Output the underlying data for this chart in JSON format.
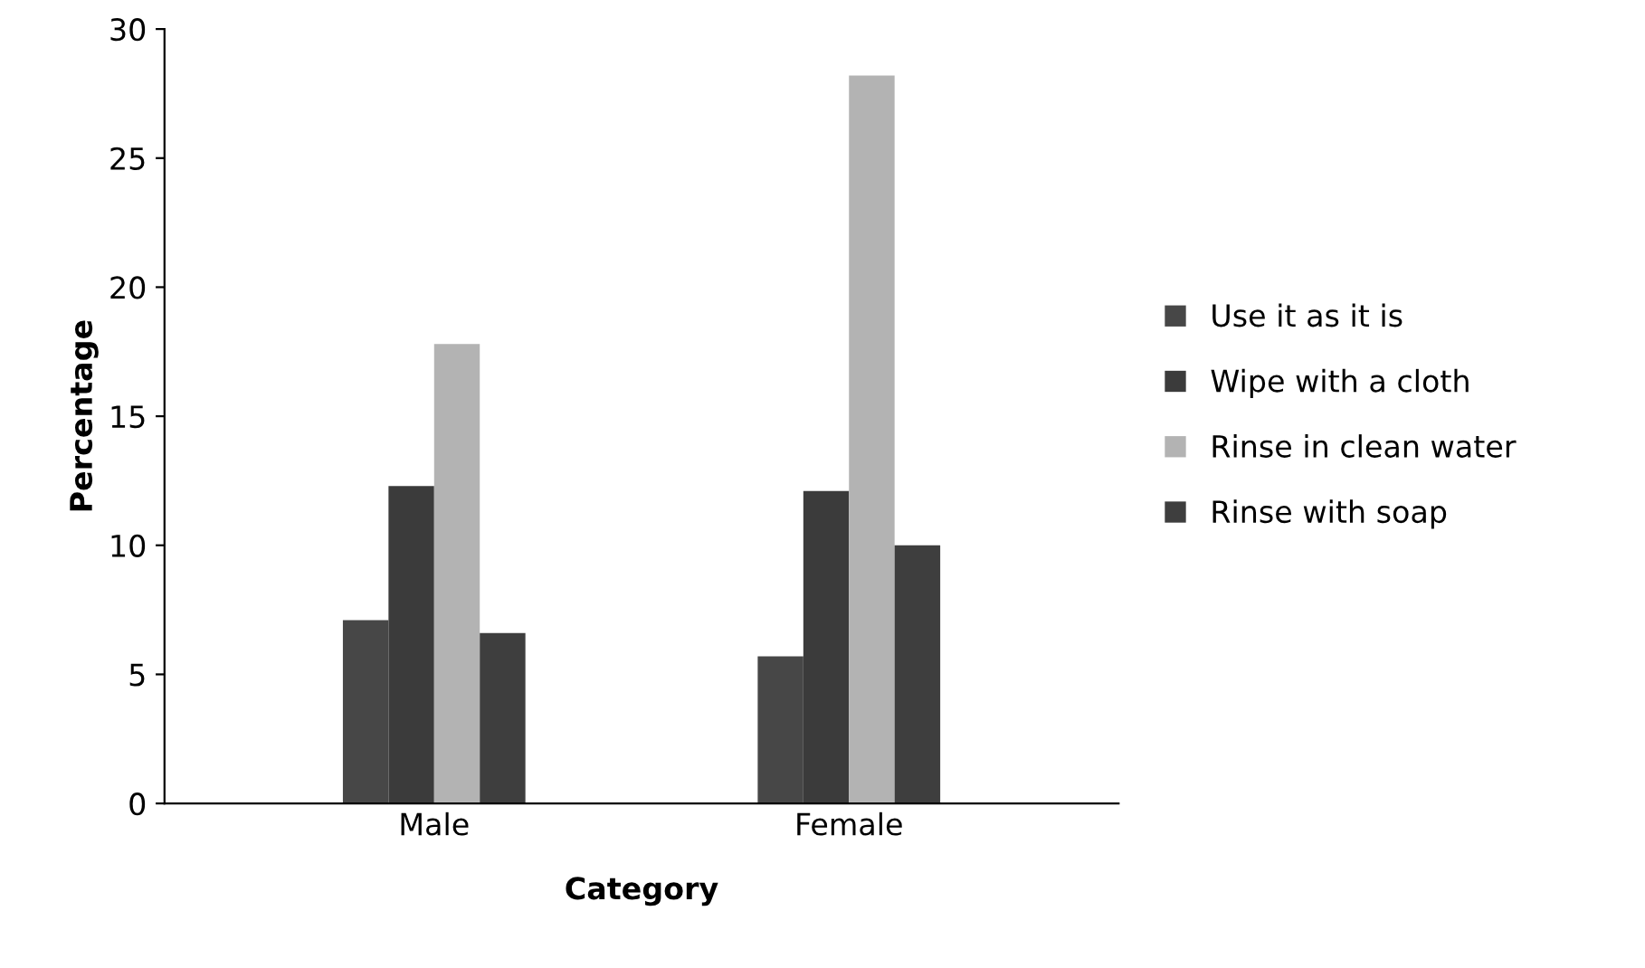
{
  "chart_data": {
    "type": "bar",
    "xlabel": "Category",
    "ylabel": "Percentage",
    "categories": [
      "Male",
      "Female"
    ],
    "series": [
      {
        "name": "Use it as it is",
        "color": "#474747",
        "values": [
          7.1,
          5.7
        ]
      },
      {
        "name": "Wipe with a cloth",
        "color": "#3b3b3b",
        "values": [
          12.3,
          12.1
        ]
      },
      {
        "name": "Rinse in clean water",
        "color": "#b3b3b3",
        "values": [
          17.8,
          28.2
        ]
      },
      {
        "name": "Rinse with soap",
        "color": "#3e3e3e",
        "values": [
          6.6,
          10.0
        ]
      }
    ],
    "ylim": [
      0,
      30
    ],
    "yticks": [
      0,
      5,
      10,
      15,
      20,
      25,
      30
    ],
    "grid": false,
    "legend": "right"
  }
}
